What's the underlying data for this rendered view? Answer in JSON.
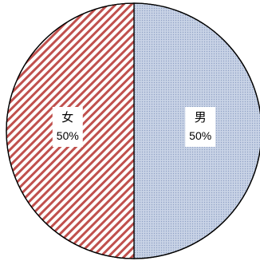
{
  "chart_data": {
    "type": "pie",
    "slices": [
      {
        "label": "男",
        "value": 50,
        "value_label": "50%",
        "color": "#c9d3e6",
        "pattern": "dots",
        "pattern_color": "#8fa1c4"
      },
      {
        "label": "女",
        "value": 50,
        "value_label": "50%",
        "color": "#ffffff",
        "pattern": "diagonal-stripes",
        "pattern_color": "#c0504d"
      }
    ],
    "start_angle_deg": 0,
    "direction": "clockwise",
    "legend": "none",
    "title": ""
  }
}
